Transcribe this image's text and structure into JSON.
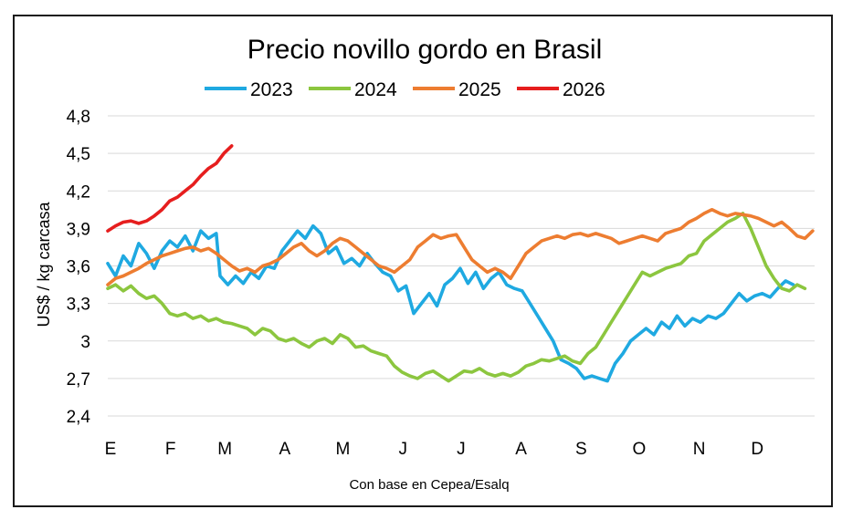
{
  "chart_data": {
    "type": "line",
    "title": "Precio novillo gordo en Brasil",
    "xlabel": "",
    "ylabel": "US$ / kg carcasa",
    "source": "Con base en Cepea/Esalq",
    "x_ticks": [
      "E",
      "F",
      "M",
      "A",
      "M",
      "J",
      "J",
      "A",
      "S",
      "O",
      "N",
      "D"
    ],
    "y_ticks": [
      "4,8",
      "4,5",
      "4,2",
      "3,9",
      "3,6",
      "3,3",
      "3",
      "2,7",
      "2,4"
    ],
    "ylim": [
      2.4,
      4.8
    ],
    "xlim_days": [
      0,
      365
    ],
    "grid": "horizontal",
    "legend_position": "top",
    "series": [
      {
        "name": "2023",
        "color": "#1fa9e1",
        "points": [
          [
            0,
            3.62
          ],
          [
            4,
            3.52
          ],
          [
            8,
            3.68
          ],
          [
            12,
            3.6
          ],
          [
            16,
            3.78
          ],
          [
            20,
            3.7
          ],
          [
            24,
            3.58
          ],
          [
            28,
            3.72
          ],
          [
            32,
            3.8
          ],
          [
            36,
            3.75
          ],
          [
            40,
            3.84
          ],
          [
            44,
            3.72
          ],
          [
            48,
            3.88
          ],
          [
            52,
            3.82
          ],
          [
            56,
            3.86
          ],
          [
            58,
            3.52
          ],
          [
            62,
            3.45
          ],
          [
            66,
            3.52
          ],
          [
            70,
            3.46
          ],
          [
            74,
            3.55
          ],
          [
            78,
            3.5
          ],
          [
            82,
            3.6
          ],
          [
            86,
            3.58
          ],
          [
            90,
            3.72
          ],
          [
            94,
            3.8
          ],
          [
            98,
            3.88
          ],
          [
            102,
            3.82
          ],
          [
            106,
            3.92
          ],
          [
            110,
            3.86
          ],
          [
            114,
            3.7
          ],
          [
            118,
            3.75
          ],
          [
            122,
            3.62
          ],
          [
            126,
            3.66
          ],
          [
            130,
            3.6
          ],
          [
            134,
            3.7
          ],
          [
            138,
            3.62
          ],
          [
            142,
            3.55
          ],
          [
            146,
            3.52
          ],
          [
            150,
            3.4
          ],
          [
            154,
            3.44
          ],
          [
            158,
            3.22
          ],
          [
            162,
            3.3
          ],
          [
            166,
            3.38
          ],
          [
            170,
            3.28
          ],
          [
            174,
            3.45
          ],
          [
            178,
            3.5
          ],
          [
            182,
            3.58
          ],
          [
            186,
            3.46
          ],
          [
            190,
            3.55
          ],
          [
            194,
            3.42
          ],
          [
            198,
            3.5
          ],
          [
            202,
            3.55
          ],
          [
            206,
            3.45
          ],
          [
            210,
            3.42
          ],
          [
            214,
            3.4
          ],
          [
            218,
            3.3
          ],
          [
            222,
            3.2
          ],
          [
            226,
            3.1
          ],
          [
            230,
            3.0
          ],
          [
            234,
            2.85
          ],
          [
            238,
            2.82
          ],
          [
            242,
            2.78
          ],
          [
            246,
            2.7
          ],
          [
            250,
            2.72
          ],
          [
            254,
            2.7
          ],
          [
            258,
            2.68
          ],
          [
            262,
            2.82
          ],
          [
            266,
            2.9
          ],
          [
            270,
            3.0
          ],
          [
            274,
            3.05
          ],
          [
            278,
            3.1
          ],
          [
            282,
            3.05
          ],
          [
            286,
            3.15
          ],
          [
            290,
            3.1
          ],
          [
            294,
            3.2
          ],
          [
            298,
            3.12
          ],
          [
            302,
            3.18
          ],
          [
            306,
            3.15
          ],
          [
            310,
            3.2
          ],
          [
            314,
            3.18
          ],
          [
            318,
            3.22
          ],
          [
            322,
            3.3
          ],
          [
            326,
            3.38
          ],
          [
            330,
            3.32
          ],
          [
            334,
            3.36
          ],
          [
            338,
            3.38
          ],
          [
            342,
            3.35
          ],
          [
            346,
            3.42
          ],
          [
            350,
            3.48
          ],
          [
            354,
            3.45
          ]
        ]
      },
      {
        "name": "2024",
        "color": "#8cc63f",
        "points": [
          [
            0,
            3.42
          ],
          [
            4,
            3.45
          ],
          [
            8,
            3.4
          ],
          [
            12,
            3.44
          ],
          [
            16,
            3.38
          ],
          [
            20,
            3.34
          ],
          [
            24,
            3.36
          ],
          [
            28,
            3.3
          ],
          [
            32,
            3.22
          ],
          [
            36,
            3.2
          ],
          [
            40,
            3.22
          ],
          [
            44,
            3.18
          ],
          [
            48,
            3.2
          ],
          [
            52,
            3.16
          ],
          [
            56,
            3.18
          ],
          [
            60,
            3.15
          ],
          [
            64,
            3.14
          ],
          [
            68,
            3.12
          ],
          [
            72,
            3.1
          ],
          [
            76,
            3.05
          ],
          [
            80,
            3.1
          ],
          [
            84,
            3.08
          ],
          [
            88,
            3.02
          ],
          [
            92,
            3.0
          ],
          [
            96,
            3.02
          ],
          [
            100,
            2.98
          ],
          [
            104,
            2.95
          ],
          [
            108,
            3.0
          ],
          [
            112,
            3.02
          ],
          [
            116,
            2.98
          ],
          [
            120,
            3.05
          ],
          [
            124,
            3.02
          ],
          [
            128,
            2.95
          ],
          [
            132,
            2.96
          ],
          [
            136,
            2.92
          ],
          [
            140,
            2.9
          ],
          [
            144,
            2.88
          ],
          [
            148,
            2.8
          ],
          [
            152,
            2.75
          ],
          [
            156,
            2.72
          ],
          [
            160,
            2.7
          ],
          [
            164,
            2.74
          ],
          [
            168,
            2.76
          ],
          [
            172,
            2.72
          ],
          [
            176,
            2.68
          ],
          [
            180,
            2.72
          ],
          [
            184,
            2.76
          ],
          [
            188,
            2.75
          ],
          [
            192,
            2.78
          ],
          [
            196,
            2.74
          ],
          [
            200,
            2.72
          ],
          [
            204,
            2.74
          ],
          [
            208,
            2.72
          ],
          [
            212,
            2.75
          ],
          [
            216,
            2.8
          ],
          [
            220,
            2.82
          ],
          [
            224,
            2.85
          ],
          [
            228,
            2.84
          ],
          [
            232,
            2.86
          ],
          [
            236,
            2.88
          ],
          [
            240,
            2.84
          ],
          [
            244,
            2.82
          ],
          [
            248,
            2.9
          ],
          [
            252,
            2.95
          ],
          [
            256,
            3.05
          ],
          [
            260,
            3.15
          ],
          [
            264,
            3.25
          ],
          [
            268,
            3.35
          ],
          [
            272,
            3.45
          ],
          [
            276,
            3.55
          ],
          [
            280,
            3.52
          ],
          [
            284,
            3.55
          ],
          [
            288,
            3.58
          ],
          [
            292,
            3.6
          ],
          [
            296,
            3.62
          ],
          [
            300,
            3.68
          ],
          [
            304,
            3.7
          ],
          [
            308,
            3.8
          ],
          [
            312,
            3.85
          ],
          [
            316,
            3.9
          ],
          [
            320,
            3.95
          ],
          [
            324,
            3.98
          ],
          [
            328,
            4.02
          ],
          [
            332,
            3.9
          ],
          [
            336,
            3.75
          ],
          [
            340,
            3.6
          ],
          [
            344,
            3.5
          ],
          [
            348,
            3.42
          ],
          [
            352,
            3.4
          ],
          [
            356,
            3.45
          ],
          [
            360,
            3.42
          ]
        ]
      },
      {
        "name": "2025",
        "color": "#ed7d31",
        "points": [
          [
            0,
            3.45
          ],
          [
            4,
            3.5
          ],
          [
            8,
            3.52
          ],
          [
            12,
            3.55
          ],
          [
            16,
            3.58
          ],
          [
            20,
            3.62
          ],
          [
            24,
            3.65
          ],
          [
            28,
            3.68
          ],
          [
            32,
            3.7
          ],
          [
            36,
            3.72
          ],
          [
            40,
            3.74
          ],
          [
            44,
            3.75
          ],
          [
            48,
            3.72
          ],
          [
            52,
            3.74
          ],
          [
            56,
            3.7
          ],
          [
            60,
            3.65
          ],
          [
            64,
            3.6
          ],
          [
            68,
            3.56
          ],
          [
            72,
            3.58
          ],
          [
            76,
            3.55
          ],
          [
            80,
            3.6
          ],
          [
            84,
            3.62
          ],
          [
            88,
            3.65
          ],
          [
            92,
            3.7
          ],
          [
            96,
            3.75
          ],
          [
            100,
            3.78
          ],
          [
            104,
            3.72
          ],
          [
            108,
            3.68
          ],
          [
            112,
            3.72
          ],
          [
            116,
            3.78
          ],
          [
            120,
            3.82
          ],
          [
            124,
            3.8
          ],
          [
            128,
            3.75
          ],
          [
            132,
            3.7
          ],
          [
            136,
            3.65
          ],
          [
            140,
            3.6
          ],
          [
            144,
            3.58
          ],
          [
            148,
            3.55
          ],
          [
            152,
            3.6
          ],
          [
            156,
            3.65
          ],
          [
            160,
            3.75
          ],
          [
            164,
            3.8
          ],
          [
            168,
            3.85
          ],
          [
            172,
            3.82
          ],
          [
            176,
            3.84
          ],
          [
            180,
            3.85
          ],
          [
            184,
            3.75
          ],
          [
            188,
            3.65
          ],
          [
            192,
            3.6
          ],
          [
            196,
            3.55
          ],
          [
            200,
            3.58
          ],
          [
            204,
            3.55
          ],
          [
            208,
            3.5
          ],
          [
            212,
            3.6
          ],
          [
            216,
            3.7
          ],
          [
            220,
            3.75
          ],
          [
            224,
            3.8
          ],
          [
            228,
            3.82
          ],
          [
            232,
            3.84
          ],
          [
            236,
            3.82
          ],
          [
            240,
            3.85
          ],
          [
            244,
            3.86
          ],
          [
            248,
            3.84
          ],
          [
            252,
            3.86
          ],
          [
            256,
            3.84
          ],
          [
            260,
            3.82
          ],
          [
            264,
            3.78
          ],
          [
            268,
            3.8
          ],
          [
            272,
            3.82
          ],
          [
            276,
            3.84
          ],
          [
            280,
            3.82
          ],
          [
            284,
            3.8
          ],
          [
            288,
            3.86
          ],
          [
            292,
            3.88
          ],
          [
            296,
            3.9
          ],
          [
            300,
            3.95
          ],
          [
            304,
            3.98
          ],
          [
            308,
            4.02
          ],
          [
            312,
            4.05
          ],
          [
            316,
            4.02
          ],
          [
            320,
            4.0
          ],
          [
            324,
            4.02
          ],
          [
            328,
            4.01
          ],
          [
            332,
            4.0
          ],
          [
            336,
            3.98
          ],
          [
            340,
            3.95
          ],
          [
            344,
            3.92
          ],
          [
            348,
            3.95
          ],
          [
            352,
            3.9
          ],
          [
            356,
            3.84
          ],
          [
            360,
            3.82
          ],
          [
            364,
            3.88
          ]
        ]
      },
      {
        "name": "2026",
        "color": "#e61e1e",
        "points": [
          [
            0,
            3.88
          ],
          [
            4,
            3.92
          ],
          [
            8,
            3.95
          ],
          [
            12,
            3.96
          ],
          [
            16,
            3.94
          ],
          [
            20,
            3.96
          ],
          [
            24,
            4.0
          ],
          [
            28,
            4.05
          ],
          [
            32,
            4.12
          ],
          [
            36,
            4.15
          ],
          [
            40,
            4.2
          ],
          [
            44,
            4.25
          ],
          [
            48,
            4.32
          ],
          [
            52,
            4.38
          ],
          [
            56,
            4.42
          ],
          [
            60,
            4.5
          ],
          [
            64,
            4.56
          ]
        ]
      }
    ]
  }
}
